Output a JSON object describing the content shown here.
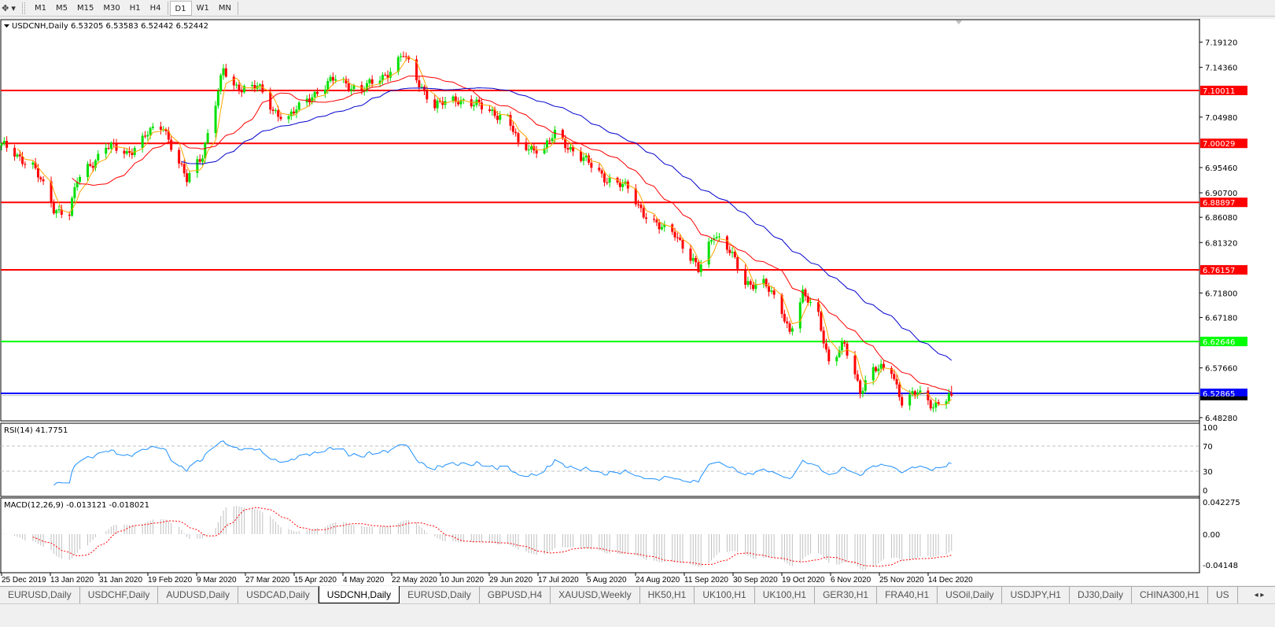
{
  "toolbar": {
    "tool_icon": "crosshair-dropdown-icon",
    "periods": [
      "M1",
      "M5",
      "M15",
      "M30",
      "H1",
      "H4",
      "D1",
      "W1",
      "MN"
    ],
    "active_period": "D1"
  },
  "chart": {
    "header": "USDCNH,Daily  6.53205 6.53583 6.52442 6.52442",
    "rsi_label": "RSI(14) 41.7751",
    "macd_label": "MACD(12,26,9) -0.013121 -0.018021",
    "colors": {
      "bull": "#00e000",
      "bear": "#ff0000",
      "ma_fast": "#ffa500",
      "ma_mid": "#ff0000",
      "ma_slow": "#0000cd",
      "rsi": "#1e90ff",
      "macd_hist": "#c0c0c0",
      "macd_signal": "#ff0000"
    }
  },
  "chart_data": {
    "type": "candlestick",
    "symbol": "USDCNH",
    "timeframe": "Daily",
    "ylim": [
      6.4828,
      7.1912
    ],
    "price_ticks": [
      "7.19120",
      "7.14360",
      "7.04980",
      "6.95460",
      "6.90700",
      "6.86080",
      "6.81320",
      "6.71800",
      "6.67180",
      "6.57660",
      "6.48280"
    ],
    "levels": [
      {
        "value": "7.10011",
        "color": "#ff0000"
      },
      {
        "value": "7.00029",
        "color": "#ff0000"
      },
      {
        "value": "6.88897",
        "color": "#ff0000"
      },
      {
        "value": "6.76157",
        "color": "#ff0000"
      },
      {
        "value": "6.62646",
        "color": "#00ff00"
      },
      {
        "value": "6.52865",
        "color": "#0000ff"
      }
    ],
    "current_price": "6.52442",
    "approx_closes": [
      [
        "2019-12-25",
        6.996
      ],
      [
        "2020-01-06",
        6.959
      ],
      [
        "2020-01-14",
        6.877
      ],
      [
        "2020-01-20",
        6.87
      ],
      [
        "2020-01-23",
        6.929
      ],
      [
        "2020-02-03",
        6.996
      ],
      [
        "2020-02-11",
        6.981
      ],
      [
        "2020-02-19",
        7.018
      ],
      [
        "2020-02-25",
        7.033
      ],
      [
        "2020-03-05",
        6.929
      ],
      [
        "2020-03-11",
        6.981
      ],
      [
        "2020-03-19",
        7.137
      ],
      [
        "2020-03-23",
        7.107
      ],
      [
        "2020-04-01",
        7.107
      ],
      [
        "2020-04-07",
        7.063
      ],
      [
        "2020-04-13",
        7.048
      ],
      [
        "2020-04-22",
        7.092
      ],
      [
        "2020-05-01",
        7.122
      ],
      [
        "2020-05-11",
        7.1
      ],
      [
        "2020-05-20",
        7.13
      ],
      [
        "2020-05-27",
        7.167
      ],
      [
        "2020-06-01",
        7.122
      ],
      [
        "2020-06-08",
        7.07
      ],
      [
        "2020-06-17",
        7.085
      ],
      [
        "2020-06-25",
        7.07
      ],
      [
        "2020-07-06",
        7.048
      ],
      [
        "2020-07-10",
        6.996
      ],
      [
        "2020-07-20",
        6.989
      ],
      [
        "2020-07-24",
        7.018
      ],
      [
        "2020-08-03",
        6.974
      ],
      [
        "2020-08-12",
        6.937
      ],
      [
        "2020-08-21",
        6.914
      ],
      [
        "2020-08-27",
        6.87
      ],
      [
        "2020-09-02",
        6.84
      ],
      [
        "2020-09-08",
        6.833
      ],
      [
        "2020-09-17",
        6.759
      ],
      [
        "2020-09-23",
        6.833
      ],
      [
        "2020-09-29",
        6.796
      ],
      [
        "2020-10-05",
        6.737
      ],
      [
        "2020-10-12",
        6.737
      ],
      [
        "2020-10-19",
        6.684
      ],
      [
        "2020-10-22",
        6.647
      ],
      [
        "2020-10-27",
        6.714
      ],
      [
        "2020-11-02",
        6.677
      ],
      [
        "2020-11-06",
        6.588
      ],
      [
        "2020-11-12",
        6.618
      ],
      [
        "2020-11-18",
        6.536
      ],
      [
        "2020-11-23",
        6.573
      ],
      [
        "2020-11-30",
        6.573
      ],
      [
        "2020-12-04",
        6.514
      ],
      [
        "2020-12-10",
        6.529
      ],
      [
        "2020-12-16",
        6.507
      ],
      [
        "2020-12-23",
        6.524
      ]
    ],
    "rsi": {
      "period": 14,
      "levels": [
        "100",
        "70",
        "30",
        "0"
      ],
      "last": 41.7751
    },
    "macd": {
      "fast": 12,
      "slow": 26,
      "signal": 9,
      "ticks": [
        "0.042275",
        "0.00",
        "-0.04148"
      ],
      "main": -0.013121,
      "signal_value": -0.018021
    },
    "date_labels": [
      "25 Dec 2019",
      "13 Jan 2020",
      "31 Jan 2020",
      "19 Feb 2020",
      "9 Mar 2020",
      "27 Mar 2020",
      "15 Apr 2020",
      "4 May 2020",
      "22 May 2020",
      "10 Jun 2020",
      "29 Jun 2020",
      "17 Jul 2020",
      "5 Aug 2020",
      "24 Aug 2020",
      "11 Sep 2020",
      "30 Sep 2020",
      "19 Oct 2020",
      "6 Nov 2020",
      "25 Nov 2020",
      "14 Dec 2020"
    ]
  },
  "tabs": [
    "EURUSD,Daily",
    "USDCHF,Daily",
    "AUDUSD,Daily",
    "USDCAD,Daily",
    "USDCNH,Daily",
    "EURUSD,Daily",
    "GBPUSD,H4",
    "XAUUSD,Weekly",
    "HK50,H1",
    "UK100,H1",
    "UK100,H1",
    "GER30,H1",
    "FRA40,H1",
    "USOil,Daily",
    "USDJPY,H1",
    "DJ30,Daily",
    "CHINA300,H1",
    "US"
  ],
  "active_tab": "USDCNH,Daily",
  "tab_scroll": "◂ ▸"
}
